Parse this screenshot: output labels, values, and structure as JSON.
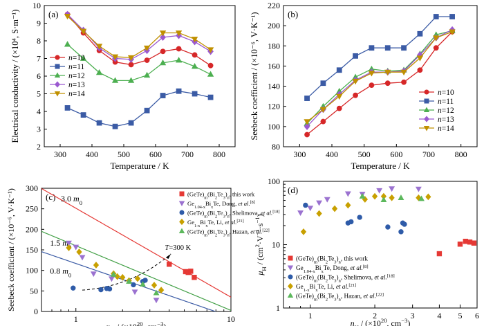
{
  "chart_data": [
    {
      "panel": "(a)",
      "type": "line",
      "xlabel": "Temperature / K",
      "ylabel": "Electrical conductivity / (×10⁴, S·m⁻¹)",
      "xlim": [
        250,
        850
      ],
      "ylim": [
        2,
        10
      ],
      "xticks": [
        "300",
        "400",
        "500",
        "600",
        "700",
        "800"
      ],
      "yticks": [
        "2",
        "3",
        "4",
        "5",
        "6",
        "7",
        "8",
        "9",
        "10"
      ],
      "legend_position": "left",
      "x": [
        323,
        373,
        423,
        473,
        523,
        573,
        623,
        673,
        723,
        773
      ],
      "series": [
        {
          "name": "n=10",
          "color": "#d62728",
          "marker": "circle",
          "values": [
            9.5,
            8.45,
            7.45,
            6.8,
            6.65,
            6.9,
            7.4,
            7.55,
            7.2,
            6.6
          ]
        },
        {
          "name": "n=11",
          "color": "#3b5ba5",
          "marker": "square",
          "values": [
            4.2,
            3.8,
            3.35,
            3.15,
            3.35,
            4.05,
            4.9,
            5.15,
            5.0,
            4.8
          ]
        },
        {
          "name": "n=12",
          "color": "#4caf50",
          "marker": "triangle-up",
          "values": [
            7.8,
            7.0,
            6.2,
            5.75,
            5.75,
            6.05,
            6.75,
            6.9,
            6.55,
            6.1
          ]
        },
        {
          "name": "n=13",
          "color": "#9b59d0",
          "marker": "diamond",
          "values": [
            9.5,
            8.6,
            7.6,
            7.0,
            6.95,
            7.45,
            8.2,
            8.3,
            7.95,
            7.4
          ]
        },
        {
          "name": "n=14",
          "color": "#c09000",
          "marker": "triangle-down",
          "values": [
            9.4,
            8.55,
            7.7,
            7.1,
            7.05,
            7.6,
            8.45,
            8.45,
            8.1,
            7.5
          ]
        }
      ]
    },
    {
      "panel": "(b)",
      "type": "line",
      "xlabel": "Temperature / K",
      "ylabel": "Seebeck coefficient / (×10⁻⁶, V·K⁻¹)",
      "xlim": [
        250,
        850
      ],
      "ylim": [
        80,
        220
      ],
      "xticks": [
        "300",
        "400",
        "500",
        "600",
        "700",
        "800"
      ],
      "yticks": [
        "80",
        "100",
        "120",
        "140",
        "160",
        "180",
        "200",
        "220"
      ],
      "legend_position": "bottom-right",
      "x": [
        323,
        373,
        423,
        473,
        523,
        573,
        623,
        673,
        723,
        773
      ],
      "series": [
        {
          "name": "n=10",
          "color": "#d62728",
          "marker": "circle",
          "values": [
            92,
            105,
            118,
            131,
            141,
            143,
            144,
            156,
            178,
            194
          ]
        },
        {
          "name": "n=11",
          "color": "#3b5ba5",
          "marker": "square",
          "values": [
            128,
            143,
            156,
            170,
            178,
            178,
            178,
            192,
            209,
            209
          ]
        },
        {
          "name": "n=12",
          "color": "#4caf50",
          "marker": "triangle-up",
          "values": [
            103,
            120,
            135,
            149,
            157,
            155,
            156,
            172,
            191,
            195
          ]
        },
        {
          "name": "n=13",
          "color": "#9b59d0",
          "marker": "diamond",
          "values": [
            100,
            117,
            132,
            146,
            154,
            154,
            155,
            171,
            188,
            196
          ]
        },
        {
          "name": "n=14",
          "color": "#c09000",
          "marker": "triangle-down",
          "values": [
            105,
            117,
            130,
            145,
            153,
            154,
            154,
            168,
            188,
            194
          ]
        }
      ]
    },
    {
      "panel": "(c)",
      "type": "scatter",
      "xscale": "log",
      "xlabel": "n_H / (×10²⁰, cm⁻³)",
      "ylabel": "Seebeck coefficient / (×10⁻⁶, V·K⁻¹)",
      "xlim": [
        0.6,
        10
      ],
      "ylim": [
        0,
        300
      ],
      "xticks": [
        "1",
        "10"
      ],
      "yticks": [
        "0",
        "50",
        "100",
        "150",
        "200",
        "250",
        "300"
      ],
      "legend_position": "top-right",
      "curves": [
        {
          "label": "3.0 m0",
          "color": "#e53935",
          "mass": 3.0,
          "anchor": [
            5.0,
            100
          ]
        },
        {
          "label": "1.5 m0",
          "color": "#43a047",
          "mass": 1.5,
          "anchor": [
            5.0,
            50
          ]
        },
        {
          "label": "0.8 m0",
          "color": "#3b5ba5",
          "mass": 0.8,
          "anchor": [
            5.0,
            26
          ]
        }
      ],
      "annotation": "T=300 K",
      "series": [
        {
          "name": "(GeTe)m(Bi2Te3)n, this work",
          "color": "#e53935",
          "marker": "square",
          "x": [
            4.0,
            5.1,
            5.3,
            5.5,
            5.8
          ],
          "y": [
            115,
            97,
            95,
            98,
            83
          ]
        },
        {
          "name": "Ge1.04-xBixTe, Dong, et al.[8]",
          "color": "#9b72d0",
          "marker": "triangle-down",
          "x": [
            0.9,
            1.0,
            1.1,
            1.3,
            1.7,
            2.4,
            3.3
          ],
          "y": [
            167,
            157,
            132,
            92,
            80,
            48,
            28
          ]
        },
        {
          "name": "(GeTe)m(Bi2Te3)n, Shelimova, et al.[18]",
          "color": "#2e5ba8",
          "marker": "circle",
          "x": [
            0.96,
            1.45,
            1.58,
            1.65,
            2.35,
            2.7,
            2.8
          ],
          "y": [
            57,
            53,
            56,
            55,
            65,
            73,
            76
          ]
        },
        {
          "name": "Ge1-xBixTe, Li, et al.[21]",
          "color": "#c8a000",
          "marker": "diamond",
          "x": [
            0.9,
            1.05,
            1.35,
            1.75,
            1.85,
            2.0,
            2.2,
            2.5,
            3.2,
            3.55
          ],
          "y": [
            155,
            145,
            113,
            92,
            85,
            83,
            75,
            80,
            64,
            52
          ]
        },
        {
          "name": "(GeTe)m(Bi2Te3)n, Hazan, et al.[22]",
          "color": "#5cb85c",
          "marker": "triangle-up",
          "x": [
            1.75,
            2.2,
            2.7,
            3.3
          ],
          "y": [
            90,
            73,
            66,
            45
          ]
        }
      ]
    },
    {
      "panel": "(d)",
      "type": "scatter",
      "xscale": "log",
      "yscale": "log",
      "xlabel": "n_H / (×10²⁰, cm⁻³)",
      "ylabel": "μ_H / (cm²·V⁻¹·s⁻¹)",
      "xlim": [
        0.75,
        6
      ],
      "ylim": [
        1,
        100
      ],
      "xticks": [
        "1",
        "2",
        "3",
        "4",
        "5",
        "6"
      ],
      "yticks": [
        "1",
        "10",
        "100"
      ],
      "legend_position": "bottom",
      "series": [
        {
          "name": "(GeTe)m(Bi2Te3)n, this work",
          "color": "#e53935",
          "marker": "square",
          "x": [
            4.0,
            5.0,
            5.3,
            5.55,
            5.8
          ],
          "y": [
            7.2,
            10.2,
            11.3,
            11.0,
            10.6
          ]
        },
        {
          "name": "Ge1.04-xBixTe, Dong, et al.[8]",
          "color": "#9b72d0",
          "marker": "triangle-down",
          "x": [
            0.9,
            1.0,
            1.1,
            1.2,
            1.5,
            1.75,
            2.1,
            2.4,
            3.2
          ],
          "y": [
            32,
            38,
            46,
            52,
            64,
            63,
            72,
            77,
            76
          ]
        },
        {
          "name": "(GeTe)m(Bi2Te3)n, Shelimova, et al.[18]",
          "color": "#2e5ba8",
          "marker": "circle",
          "x": [
            0.95,
            1.5,
            1.55,
            1.7,
            2.3,
            2.65,
            2.7,
            2.75
          ],
          "y": [
            42,
            22,
            23,
            27,
            19,
            16,
            22,
            21
          ]
        },
        {
          "name": "Ge1-xBixTe, Li, et al.[21]",
          "color": "#c8a000",
          "marker": "diamond",
          "x": [
            0.93,
            1.1,
            1.3,
            1.5,
            1.8,
            2.0,
            2.2,
            2.4,
            3.2,
            3.55
          ],
          "y": [
            16,
            31,
            37,
            42,
            52,
            58,
            58,
            55,
            55,
            57
          ]
        },
        {
          "name": "(GeTe)m(Bi2Te3)n, Hazan, et al.[22]",
          "color": "#5cb85c",
          "marker": "triangle-up",
          "x": [
            1.75,
            2.2,
            2.65,
            3.3
          ],
          "y": [
            58,
            51,
            55,
            53
          ]
        }
      ]
    }
  ]
}
